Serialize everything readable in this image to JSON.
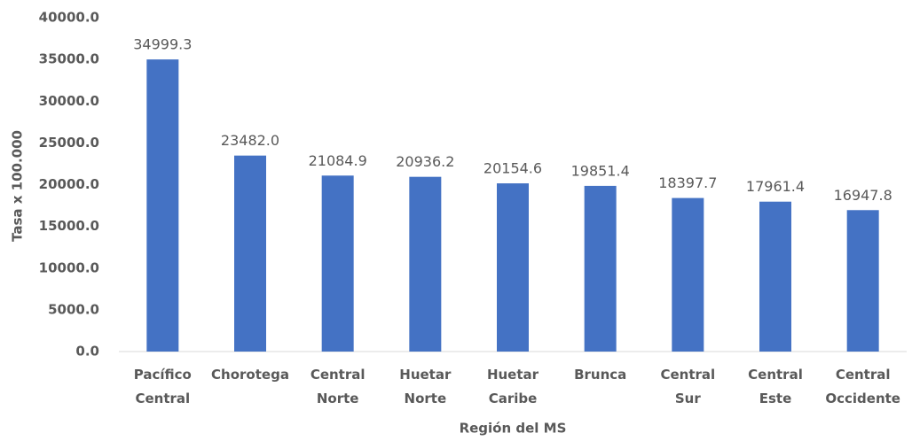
{
  "chart_data": {
    "type": "bar",
    "x_label": "Región del MS",
    "y_label": "Tasa x 100.000",
    "categories": [
      "Pacífico Central",
      "Chorotega",
      "Central Norte",
      "Huetar Norte",
      "Huetar Caribe",
      "Brunca",
      "Central Sur",
      "Central Este",
      "Central Occidente"
    ],
    "values": [
      34999.3,
      23482.0,
      21084.9,
      20936.2,
      20154.6,
      19851.4,
      18397.7,
      17961.4,
      16947.8
    ],
    "value_labels": [
      "34999.3",
      "23482.0",
      "21084.9",
      "20936.2",
      "20154.6",
      "19851.4",
      "18397.7",
      "17961.4",
      "16947.8"
    ],
    "color": "#4472c4",
    "ylim": [
      0,
      40000
    ],
    "yticks": [
      {
        "value": 0,
        "label": "0.0"
      },
      {
        "value": 5000,
        "label": "5000.0"
      },
      {
        "value": 10000,
        "label": "10000.0"
      },
      {
        "value": 15000,
        "label": "15000.0"
      },
      {
        "value": 20000,
        "label": "20000.0"
      },
      {
        "value": 25000,
        "label": "25000.0"
      },
      {
        "value": 30000,
        "label": "30000.0"
      },
      {
        "value": 35000,
        "label": "35000.0"
      },
      {
        "value": 40000,
        "label": "40000.0"
      }
    ],
    "grid": false
  }
}
